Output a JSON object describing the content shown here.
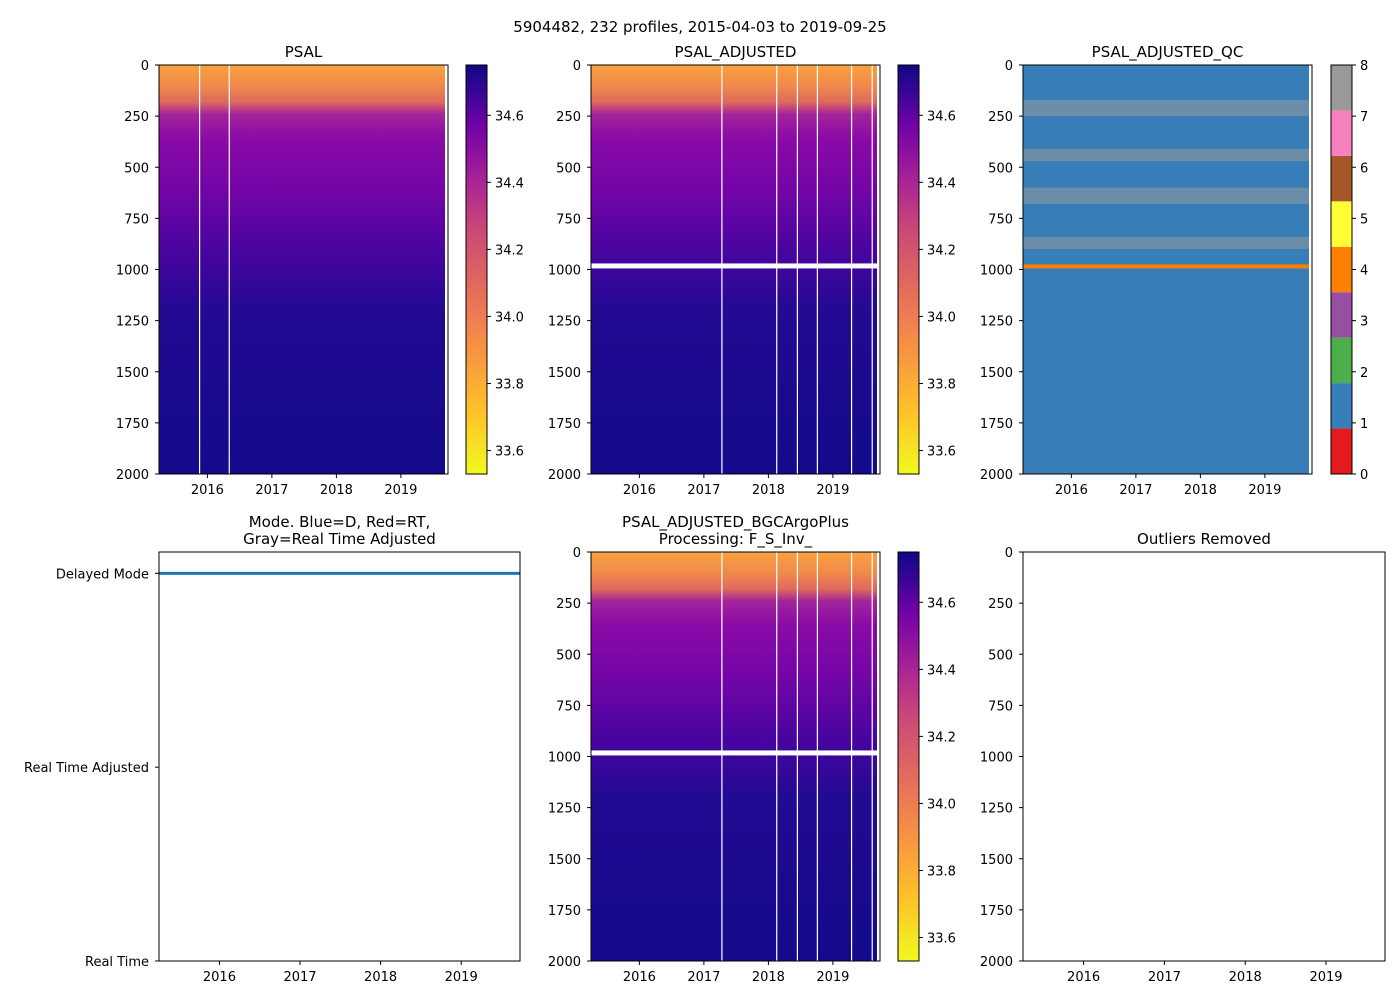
{
  "suptitle": "5904482, 232 profiles, 2015-04-03 to 2019-09-25",
  "chart_data": [
    {
      "id": "psal",
      "type": "heatmap",
      "title": [
        "PSAL"
      ],
      "xlim": [
        2015.25,
        2019.73
      ],
      "xticks": [
        2016,
        2017,
        2018,
        2019
      ],
      "ylim": [
        2000,
        0
      ],
      "yticks": [
        0,
        250,
        500,
        750,
        1000,
        1250,
        1500,
        1750,
        2000
      ],
      "colorbar": {
        "type": "continuous",
        "range": [
          33.53,
          34.75
        ],
        "ticks": [
          33.6,
          33.8,
          34.0,
          34.2,
          34.4,
          34.6
        ],
        "colormap": "plasma_r"
      },
      "gap_columns": [
        2015.87,
        2016.33
      ],
      "white_band_depth": null
    },
    {
      "id": "psal_adjusted",
      "type": "heatmap",
      "title": [
        "PSAL_ADJUSTED"
      ],
      "xlim": [
        2015.25,
        2019.73
      ],
      "xticks": [
        2016,
        2017,
        2018,
        2019
      ],
      "ylim": [
        2000,
        0
      ],
      "yticks": [
        0,
        250,
        500,
        750,
        1000,
        1250,
        1500,
        1750,
        2000
      ],
      "colorbar": {
        "type": "continuous",
        "range": [
          33.53,
          34.75
        ],
        "ticks": [
          33.6,
          33.8,
          34.0,
          34.2,
          34.4,
          34.6
        ],
        "colormap": "plasma_r"
      },
      "gap_columns": [
        2017.27,
        2018.12,
        2018.44,
        2018.75,
        2019.28,
        2019.6
      ],
      "white_band_depth": 985
    },
    {
      "id": "psal_adjusted_qc",
      "type": "heatmap",
      "title": [
        "PSAL_ADJUSTED_QC"
      ],
      "xlim": [
        2015.25,
        2019.73
      ],
      "xticks": [
        2016,
        2017,
        2018,
        2019
      ],
      "ylim": [
        2000,
        0
      ],
      "yticks": [
        0,
        250,
        500,
        750,
        1000,
        1250,
        1500,
        1750,
        2000
      ],
      "colorbar": {
        "type": "discrete",
        "range": [
          0,
          8
        ],
        "ticks": [
          0,
          1,
          2,
          3,
          4,
          5,
          6,
          7,
          8
        ],
        "colors": [
          "#e41a1c",
          "#377eb8",
          "#4daf4a",
          "#984ea3",
          "#ff7f00",
          "#ffff33",
          "#a65628",
          "#f781bf",
          "#999999"
        ]
      },
      "background_qc": 1,
      "qc_bands": [
        {
          "qc": 8,
          "from": 170,
          "to": 250
        },
        {
          "qc": 8,
          "from": 410,
          "to": 470
        },
        {
          "qc": 8,
          "from": 600,
          "to": 680
        },
        {
          "qc": 8,
          "from": 840,
          "to": 900
        },
        {
          "qc": 4,
          "from": 975,
          "to": 995
        }
      ]
    },
    {
      "id": "mode",
      "type": "line",
      "title": [
        "Mode. Blue=D, Red=RT,",
        "Gray=Real Time Adjusted"
      ],
      "xlim": [
        2015.25,
        2019.73
      ],
      "xticks": [
        2016,
        2017,
        2018,
        2019
      ],
      "ycategories": [
        "Real Time",
        "Real Time Adjusted",
        "Delayed Mode"
      ],
      "series": [
        {
          "name": "D",
          "color": "#1f77b4",
          "x": [
            2015.25,
            2019.73
          ],
          "y": [
            "Delayed Mode",
            "Delayed Mode"
          ]
        }
      ]
    },
    {
      "id": "psal_bgcargoplus",
      "type": "heatmap",
      "title": [
        "PSAL_ADJUSTED_BGCArgoPlus",
        "Processing: F_S_Inv_"
      ],
      "xlim": [
        2015.25,
        2019.73
      ],
      "xticks": [
        2016,
        2017,
        2018,
        2019
      ],
      "ylim": [
        2000,
        0
      ],
      "yticks": [
        0,
        250,
        500,
        750,
        1000,
        1250,
        1500,
        1750,
        2000
      ],
      "colorbar": {
        "type": "continuous",
        "range": [
          33.53,
          34.75
        ],
        "ticks": [
          33.6,
          33.8,
          34.0,
          34.2,
          34.4,
          34.6
        ],
        "colormap": "plasma_r"
      },
      "gap_columns": [
        2017.27,
        2018.12,
        2018.44,
        2018.75,
        2019.28,
        2019.6
      ],
      "white_band_depth": 985
    },
    {
      "id": "outliers",
      "type": "scatter",
      "title": [
        "Outliers Removed"
      ],
      "xlim": [
        2015.25,
        2019.73
      ],
      "xticks": [
        2016,
        2017,
        2018,
        2019
      ],
      "ylim": [
        2000,
        0
      ],
      "yticks": [
        0,
        250,
        500,
        750,
        1000,
        1250,
        1500,
        1750,
        2000
      ],
      "points": []
    }
  ]
}
